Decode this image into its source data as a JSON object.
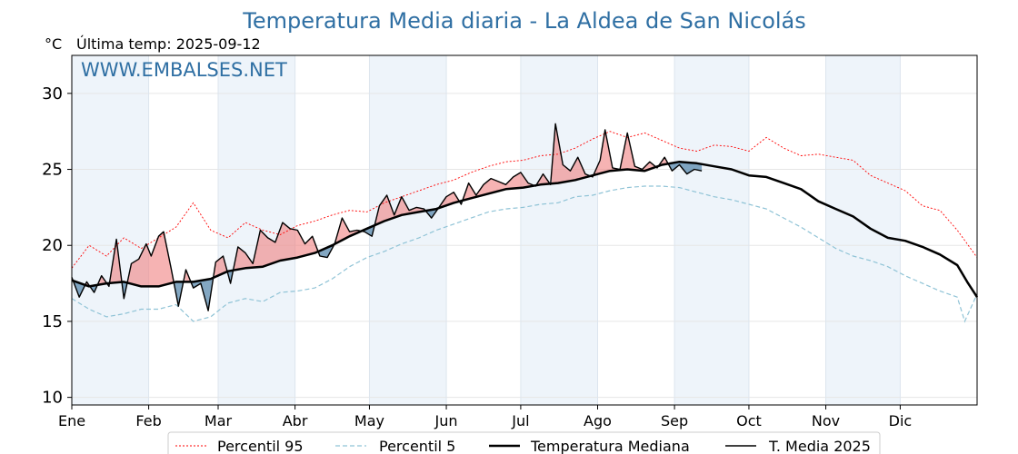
{
  "chart_data": {
    "type": "line",
    "title": "Temperatura Media diaria - La Aldea de San Nicolás",
    "unit_label": "°C",
    "last_temp_label": "Última temp: 2025-09-12",
    "watermark": "WWW.EMBALSES.NET",
    "ylim": [
      9.5,
      32.5
    ],
    "yticks": [
      10,
      15,
      20,
      25,
      30
    ],
    "months": [
      "Ene",
      "Feb",
      "Mar",
      "Abr",
      "May",
      "Jun",
      "Jul",
      "Ago",
      "Sep",
      "Oct",
      "Nov",
      "Dic"
    ],
    "month_start_days": [
      1,
      32,
      60,
      91,
      121,
      152,
      182,
      213,
      244,
      274,
      305,
      335
    ],
    "xlim": [
      1,
      366
    ],
    "grid": true,
    "legend_position": "bottom-center",
    "colors": {
      "p95": "#ff0000",
      "p5": "#8fc3d6",
      "median": "#000000",
      "current": "#000000",
      "fill_above": "#f08080",
      "fill_below": "#4f81a8",
      "band": "#eef4fa",
      "title": "#2f6fa3"
    },
    "series": [
      {
        "name": "Percentil 95",
        "key": "p95",
        "points": [
          [
            1,
            18.5
          ],
          [
            8,
            20
          ],
          [
            15,
            19.3
          ],
          [
            22,
            20.5
          ],
          [
            29,
            19.8
          ],
          [
            36,
            20.5
          ],
          [
            43,
            21.2
          ],
          [
            50,
            22.8
          ],
          [
            57,
            21
          ],
          [
            64,
            20.5
          ],
          [
            71,
            21.5
          ],
          [
            78,
            21
          ],
          [
            85,
            20.7
          ],
          [
            92,
            21.3
          ],
          [
            99,
            21.6
          ],
          [
            106,
            22
          ],
          [
            113,
            22.3
          ],
          [
            120,
            22.2
          ],
          [
            127,
            22.8
          ],
          [
            134,
            23.2
          ],
          [
            141,
            23.6
          ],
          [
            148,
            24
          ],
          [
            155,
            24.3
          ],
          [
            162,
            24.8
          ],
          [
            169,
            25.2
          ],
          [
            176,
            25.5
          ],
          [
            183,
            25.6
          ],
          [
            190,
            25.9
          ],
          [
            197,
            26
          ],
          [
            204,
            26.4
          ],
          [
            211,
            27
          ],
          [
            218,
            27.5
          ],
          [
            225,
            27.1
          ],
          [
            232,
            27.4
          ],
          [
            239,
            26.9
          ],
          [
            246,
            26.4
          ],
          [
            253,
            26.2
          ],
          [
            260,
            26.6
          ],
          [
            267,
            26.5
          ],
          [
            274,
            26.2
          ],
          [
            281,
            27.1
          ],
          [
            288,
            26.4
          ],
          [
            295,
            25.9
          ],
          [
            302,
            26
          ],
          [
            309,
            25.8
          ],
          [
            316,
            25.6
          ],
          [
            323,
            24.6
          ],
          [
            330,
            24.1
          ],
          [
            337,
            23.6
          ],
          [
            344,
            22.6
          ],
          [
            351,
            22.3
          ],
          [
            358,
            21
          ],
          [
            366,
            19.2
          ]
        ]
      },
      {
        "name": "Percentil 5",
        "key": "p5",
        "points": [
          [
            1,
            16.5
          ],
          [
            8,
            15.8
          ],
          [
            15,
            15.3
          ],
          [
            22,
            15.5
          ],
          [
            29,
            15.8
          ],
          [
            36,
            15.8
          ],
          [
            43,
            16.1
          ],
          [
            50,
            15
          ],
          [
            57,
            15.3
          ],
          [
            64,
            16.2
          ],
          [
            71,
            16.5
          ],
          [
            78,
            16.3
          ],
          [
            85,
            16.9
          ],
          [
            92,
            17
          ],
          [
            99,
            17.2
          ],
          [
            106,
            17.8
          ],
          [
            113,
            18.6
          ],
          [
            120,
            19.2
          ],
          [
            127,
            19.6
          ],
          [
            134,
            20.1
          ],
          [
            141,
            20.5
          ],
          [
            148,
            21
          ],
          [
            155,
            21.4
          ],
          [
            162,
            21.8
          ],
          [
            169,
            22.2
          ],
          [
            176,
            22.4
          ],
          [
            183,
            22.5
          ],
          [
            190,
            22.7
          ],
          [
            197,
            22.8
          ],
          [
            204,
            23.2
          ],
          [
            211,
            23.3
          ],
          [
            218,
            23.6
          ],
          [
            225,
            23.8
          ],
          [
            232,
            23.9
          ],
          [
            239,
            23.9
          ],
          [
            246,
            23.8
          ],
          [
            253,
            23.5
          ],
          [
            260,
            23.2
          ],
          [
            267,
            23
          ],
          [
            274,
            22.7
          ],
          [
            281,
            22.4
          ],
          [
            288,
            21.8
          ],
          [
            295,
            21.2
          ],
          [
            302,
            20.5
          ],
          [
            309,
            19.8
          ],
          [
            316,
            19.3
          ],
          [
            323,
            19
          ],
          [
            330,
            18.6
          ],
          [
            337,
            18
          ],
          [
            344,
            17.5
          ],
          [
            351,
            17
          ],
          [
            358,
            16.6
          ],
          [
            361,
            15
          ],
          [
            366,
            16.8
          ]
        ]
      },
      {
        "name": "Temperatura Mediana",
        "key": "median",
        "points": [
          [
            1,
            17.7
          ],
          [
            8,
            17.3
          ],
          [
            15,
            17.5
          ],
          [
            22,
            17.6
          ],
          [
            29,
            17.3
          ],
          [
            36,
            17.3
          ],
          [
            43,
            17.6
          ],
          [
            50,
            17.6
          ],
          [
            57,
            17.8
          ],
          [
            64,
            18.3
          ],
          [
            71,
            18.5
          ],
          [
            78,
            18.6
          ],
          [
            85,
            19
          ],
          [
            92,
            19.2
          ],
          [
            99,
            19.5
          ],
          [
            106,
            20
          ],
          [
            113,
            20.6
          ],
          [
            120,
            21.1
          ],
          [
            127,
            21.6
          ],
          [
            134,
            22
          ],
          [
            141,
            22.2
          ],
          [
            148,
            22.4
          ],
          [
            155,
            22.8
          ],
          [
            162,
            23.1
          ],
          [
            169,
            23.4
          ],
          [
            176,
            23.7
          ],
          [
            183,
            23.8
          ],
          [
            190,
            24
          ],
          [
            197,
            24.1
          ],
          [
            204,
            24.3
          ],
          [
            211,
            24.6
          ],
          [
            218,
            24.9
          ],
          [
            225,
            25
          ],
          [
            232,
            24.9
          ],
          [
            239,
            25.3
          ],
          [
            246,
            25.5
          ],
          [
            253,
            25.4
          ],
          [
            260,
            25.2
          ],
          [
            267,
            25
          ],
          [
            274,
            24.6
          ],
          [
            281,
            24.5
          ],
          [
            288,
            24.1
          ],
          [
            295,
            23.7
          ],
          [
            302,
            22.9
          ],
          [
            309,
            22.4
          ],
          [
            316,
            21.9
          ],
          [
            323,
            21.1
          ],
          [
            330,
            20.5
          ],
          [
            337,
            20.3
          ],
          [
            344,
            19.9
          ],
          [
            351,
            19.4
          ],
          [
            358,
            18.7
          ],
          [
            362,
            17.6
          ],
          [
            366,
            16.6
          ]
        ]
      },
      {
        "name": "T. Media 2025",
        "key": "current",
        "points": [
          [
            1,
            17.9
          ],
          [
            4,
            16.6
          ],
          [
            7,
            17.6
          ],
          [
            10,
            16.9
          ],
          [
            13,
            18
          ],
          [
            16,
            17.3
          ],
          [
            19,
            20.4
          ],
          [
            22,
            16.5
          ],
          [
            25,
            18.8
          ],
          [
            28,
            19.1
          ],
          [
            31,
            20.1
          ],
          [
            33,
            19.3
          ],
          [
            36,
            20.6
          ],
          [
            38,
            20.9
          ],
          [
            41,
            18.5
          ],
          [
            44,
            16
          ],
          [
            47,
            18.4
          ],
          [
            50,
            17.2
          ],
          [
            53,
            17.5
          ],
          [
            56,
            15.7
          ],
          [
            59,
            18.9
          ],
          [
            62,
            19.3
          ],
          [
            65,
            17.5
          ],
          [
            68,
            19.9
          ],
          [
            71,
            19.5
          ],
          [
            74,
            18.8
          ],
          [
            77,
            21
          ],
          [
            80,
            20.5
          ],
          [
            83,
            20.2
          ],
          [
            86,
            21.5
          ],
          [
            89,
            21.1
          ],
          [
            92,
            21
          ],
          [
            95,
            20.1
          ],
          [
            98,
            20.6
          ],
          [
            101,
            19.3
          ],
          [
            104,
            19.2
          ],
          [
            107,
            20.1
          ],
          [
            110,
            21.8
          ],
          [
            113,
            20.9
          ],
          [
            116,
            21
          ],
          [
            119,
            20.9
          ],
          [
            122,
            20.6
          ],
          [
            125,
            22.6
          ],
          [
            128,
            23.3
          ],
          [
            131,
            22
          ],
          [
            134,
            23.2
          ],
          [
            137,
            22.3
          ],
          [
            140,
            22.5
          ],
          [
            143,
            22.4
          ],
          [
            146,
            21.8
          ],
          [
            149,
            22.5
          ],
          [
            152,
            23.2
          ],
          [
            155,
            23.5
          ],
          [
            158,
            22.7
          ],
          [
            161,
            24.1
          ],
          [
            164,
            23.3
          ],
          [
            167,
            24
          ],
          [
            170,
            24.4
          ],
          [
            173,
            24.2
          ],
          [
            176,
            24
          ],
          [
            179,
            24.5
          ],
          [
            182,
            24.8
          ],
          [
            185,
            24.1
          ],
          [
            188,
            23.9
          ],
          [
            191,
            24.7
          ],
          [
            194,
            24
          ],
          [
            196,
            28
          ],
          [
            199,
            25.3
          ],
          [
            202,
            24.9
          ],
          [
            205,
            25.8
          ],
          [
            208,
            24.7
          ],
          [
            211,
            24.5
          ],
          [
            214,
            25.6
          ],
          [
            216,
            27.6
          ],
          [
            219,
            25.1
          ],
          [
            222,
            25
          ],
          [
            225,
            27.4
          ],
          [
            228,
            25.2
          ],
          [
            231,
            25
          ],
          [
            234,
            25.5
          ],
          [
            237,
            25.1
          ],
          [
            240,
            25.8
          ],
          [
            243,
            24.9
          ],
          [
            246,
            25.3
          ],
          [
            249,
            24.7
          ],
          [
            252,
            25
          ],
          [
            255,
            24.9
          ]
        ]
      }
    ]
  }
}
